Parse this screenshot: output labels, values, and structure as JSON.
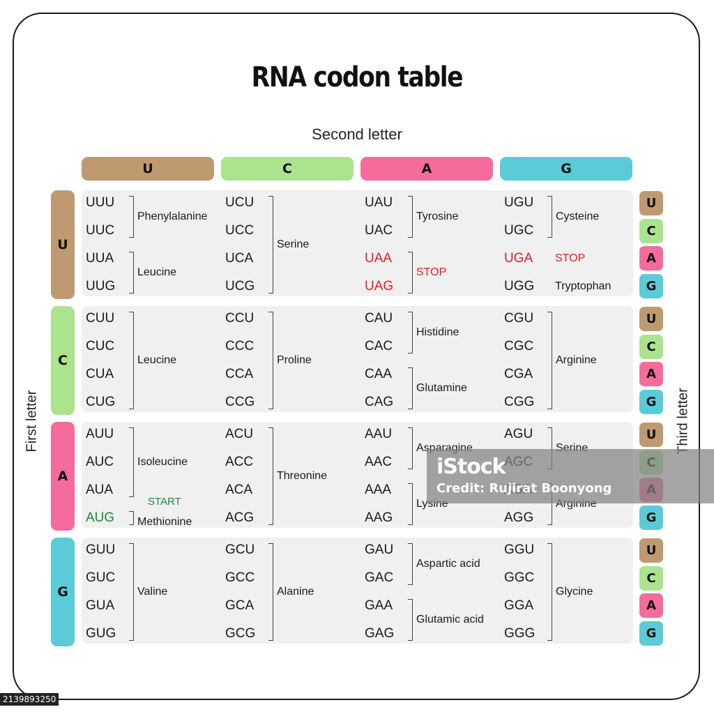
{
  "title": "RNA codon table",
  "axis_labels": {
    "second": "Second letter",
    "first": "First letter",
    "third": "Third letter"
  },
  "bases": [
    "U",
    "C",
    "A",
    "G"
  ],
  "colors": {
    "U": "#bf9a70",
    "C": "#abe38f",
    "A": "#f56b9c",
    "G": "#5bcbd8"
  },
  "rows": [
    {
      "first": "U",
      "cols": [
        {
          "codons": [
            {
              "text": "UUU"
            },
            {
              "text": "UUC"
            },
            {
              "text": "UUA"
            },
            {
              "text": "UUG"
            }
          ],
          "groups": [
            {
              "start": 0,
              "end": 1,
              "name": "Phenylalanine"
            },
            {
              "start": 2,
              "end": 3,
              "name": "Leucine"
            }
          ]
        },
        {
          "codons": [
            {
              "text": "UCU"
            },
            {
              "text": "UCC"
            },
            {
              "text": "UCA"
            },
            {
              "text": "UCG"
            }
          ],
          "groups": [
            {
              "start": 0,
              "end": 3,
              "name": "Serine"
            }
          ]
        },
        {
          "codons": [
            {
              "text": "UAU"
            },
            {
              "text": "UAC"
            },
            {
              "text": "UAA",
              "style": "red"
            },
            {
              "text": "UAG",
              "style": "red"
            }
          ],
          "groups": [
            {
              "start": 0,
              "end": 1,
              "name": "Tyrosine"
            },
            {
              "start": 2,
              "end": 3,
              "name": "STOP",
              "style": "red"
            }
          ]
        },
        {
          "codons": [
            {
              "text": "UGU"
            },
            {
              "text": "UGC"
            },
            {
              "text": "UGA",
              "style": "red"
            },
            {
              "text": "UGG"
            }
          ],
          "groups": [
            {
              "start": 0,
              "end": 1,
              "name": "Cysteine"
            },
            {
              "start": 2,
              "end": 2,
              "name": "STOP",
              "style": "red",
              "nobracket": true
            },
            {
              "start": 3,
              "end": 3,
              "name": "Tryptophan",
              "nobracket": true
            }
          ]
        }
      ]
    },
    {
      "first": "C",
      "cols": [
        {
          "codons": [
            {
              "text": "CUU"
            },
            {
              "text": "CUC"
            },
            {
              "text": "CUA"
            },
            {
              "text": "CUG"
            }
          ],
          "groups": [
            {
              "start": 0,
              "end": 3,
              "name": "Leucine"
            }
          ]
        },
        {
          "codons": [
            {
              "text": "CCU"
            },
            {
              "text": "CCC"
            },
            {
              "text": "CCA"
            },
            {
              "text": "CCG"
            }
          ],
          "groups": [
            {
              "start": 0,
              "end": 3,
              "name": "Proline"
            }
          ]
        },
        {
          "codons": [
            {
              "text": "CAU"
            },
            {
              "text": "CAC"
            },
            {
              "text": "CAA"
            },
            {
              "text": "CAG"
            }
          ],
          "groups": [
            {
              "start": 0,
              "end": 1,
              "name": "Histidine"
            },
            {
              "start": 2,
              "end": 3,
              "name": "Glutamine"
            }
          ]
        },
        {
          "codons": [
            {
              "text": "CGU"
            },
            {
              "text": "CGC"
            },
            {
              "text": "CGA"
            },
            {
              "text": "CGG"
            }
          ],
          "groups": [
            {
              "start": 0,
              "end": 3,
              "name": "Arginine"
            }
          ]
        }
      ]
    },
    {
      "first": "A",
      "cols": [
        {
          "codons": [
            {
              "text": "AUU"
            },
            {
              "text": "AUC"
            },
            {
              "text": "AUA"
            },
            {
              "text": "AUG",
              "style": "green"
            }
          ],
          "groups": [
            {
              "start": 0,
              "end": 2,
              "name": "Isoleucine"
            },
            {
              "start": 3,
              "end": 3,
              "name": "Methionine",
              "extra": "START"
            }
          ]
        },
        {
          "codons": [
            {
              "text": "ACU"
            },
            {
              "text": "ACC"
            },
            {
              "text": "ACA"
            },
            {
              "text": "ACG"
            }
          ],
          "groups": [
            {
              "start": 0,
              "end": 3,
              "name": "Threonine"
            }
          ]
        },
        {
          "codons": [
            {
              "text": "AAU"
            },
            {
              "text": "AAC"
            },
            {
              "text": "AAA"
            },
            {
              "text": "AAG"
            }
          ],
          "groups": [
            {
              "start": 0,
              "end": 1,
              "name": "Asparagine"
            },
            {
              "start": 2,
              "end": 3,
              "name": "Lysine"
            }
          ]
        },
        {
          "codons": [
            {
              "text": "AGU"
            },
            {
              "text": "AGC"
            },
            {
              "text": "AGA"
            },
            {
              "text": "AGG"
            }
          ],
          "groups": [
            {
              "start": 0,
              "end": 1,
              "name": "Serine"
            },
            {
              "start": 2,
              "end": 3,
              "name": "Arginine"
            }
          ]
        }
      ]
    },
    {
      "first": "G",
      "cols": [
        {
          "codons": [
            {
              "text": "GUU"
            },
            {
              "text": "GUC"
            },
            {
              "text": "GUA"
            },
            {
              "text": "GUG"
            }
          ],
          "groups": [
            {
              "start": 0,
              "end": 3,
              "name": "Valine"
            }
          ]
        },
        {
          "codons": [
            {
              "text": "GCU"
            },
            {
              "text": "GCC"
            },
            {
              "text": "GCA"
            },
            {
              "text": "GCG"
            }
          ],
          "groups": [
            {
              "start": 0,
              "end": 3,
              "name": "Alanine"
            }
          ]
        },
        {
          "codons": [
            {
              "text": "GAU"
            },
            {
              "text": "GAC"
            },
            {
              "text": "GAA"
            },
            {
              "text": "GAG"
            }
          ],
          "groups": [
            {
              "start": 0,
              "end": 1,
              "name": "Aspartic acid"
            },
            {
              "start": 2,
              "end": 3,
              "name": "Glutamic acid"
            }
          ]
        },
        {
          "codons": [
            {
              "text": "GGU"
            },
            {
              "text": "GGC"
            },
            {
              "text": "GGA"
            },
            {
              "text": "GGG"
            }
          ],
          "groups": [
            {
              "start": 0,
              "end": 3,
              "name": "Glycine"
            }
          ]
        }
      ]
    }
  ],
  "watermark": {
    "logo": "iStock",
    "credit": "Credit: Rujirat Boonyong"
  },
  "image_id": "2139893250"
}
